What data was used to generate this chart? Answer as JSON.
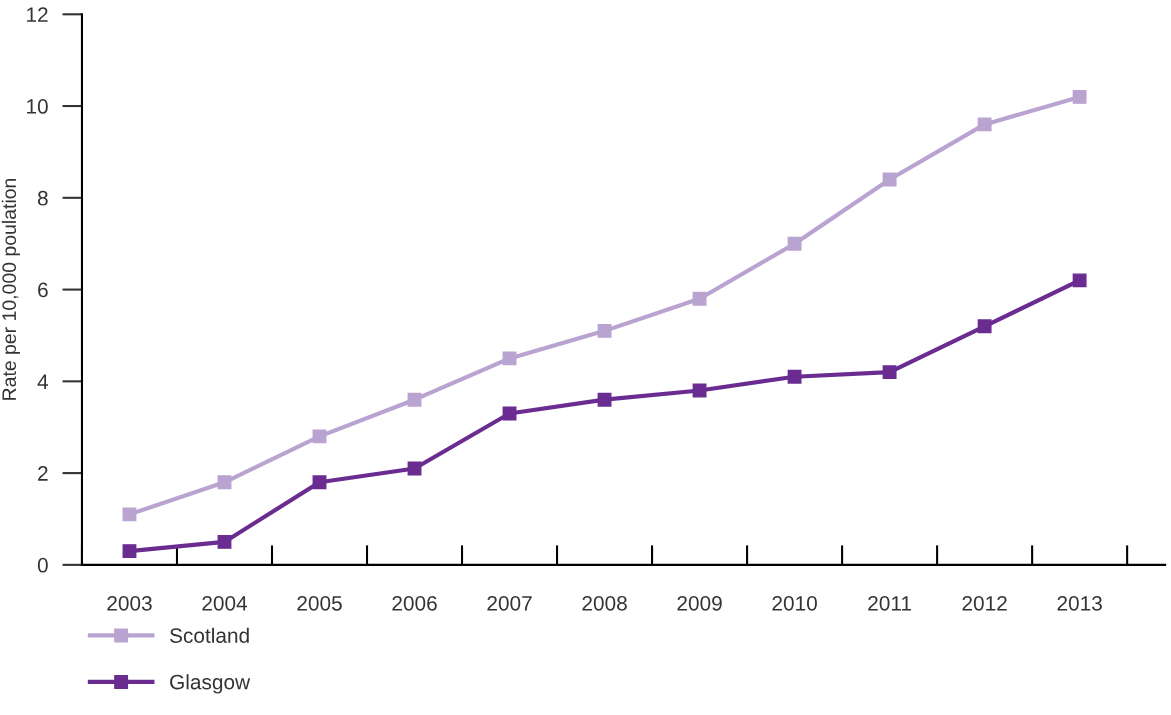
{
  "chart_data": {
    "type": "line",
    "ylabel": "Rate per 10,000 poulation",
    "categories": [
      "2003",
      "2004",
      "2005",
      "2006",
      "2007",
      "2008",
      "2009",
      "2010",
      "2011",
      "2012",
      "2013"
    ],
    "series": [
      {
        "name": "Scotland",
        "color": "#b9a3d0",
        "values": [
          1.1,
          1.8,
          2.8,
          3.6,
          4.5,
          5.1,
          5.8,
          7.0,
          8.4,
          9.6,
          10.2
        ]
      },
      {
        "name": "Glasgow",
        "color": "#6a2c91",
        "values": [
          0.3,
          0.5,
          1.8,
          2.1,
          3.3,
          3.6,
          3.8,
          4.1,
          4.2,
          5.2,
          6.2
        ]
      }
    ],
    "ylim": [
      0,
      12
    ],
    "yticks": [
      0,
      2,
      4,
      6,
      8,
      10,
      12
    ],
    "grid": false,
    "legend": "bottom left",
    "marker": "square",
    "line_style": "solid"
  }
}
